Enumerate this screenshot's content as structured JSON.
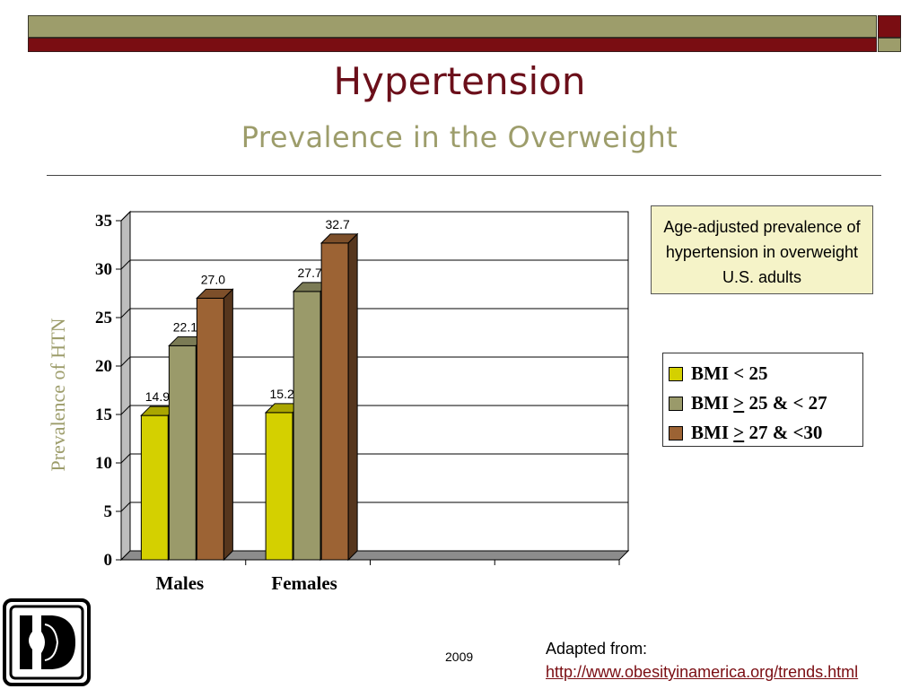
{
  "slide": {
    "title": "Hypertension",
    "subtitle": "Prevalence in the Overweight",
    "note": "Age-adjusted prevalence of hypertension in overweight U.S. adults",
    "year": "2009",
    "source_label": "Adapted from:",
    "source_link": "http://www.obesityinamerica.org/trends.html"
  },
  "colors": {
    "olive": "#9d9d6b",
    "maroon": "#7a0d12",
    "note_bg": "#f5f3c8"
  },
  "legend": [
    {
      "pre": "BMI < 25",
      "u": "",
      "post": "",
      "color": "#d4d000"
    },
    {
      "pre": "BMI ",
      "u": ">",
      "post": " 25 & < 27",
      "color": "#9a9a6a"
    },
    {
      "pre": "BMI ",
      "u": ">",
      "post": " 27 & <30",
      "color": "#9c6334"
    }
  ],
  "chart_data": {
    "type": "bar",
    "categories": [
      "Males",
      "Females"
    ],
    "series": [
      {
        "name": "BMI < 25",
        "values": [
          14.9,
          15.2
        ],
        "color": "#d4d000"
      },
      {
        "name": "BMI > 25 & < 27",
        "values": [
          22.1,
          27.7
        ],
        "color": "#9a9a6a"
      },
      {
        "name": "BMI > 27 & <30",
        "values": [
          27.0,
          32.7
        ],
        "color": "#9c6334"
      }
    ],
    "data_labels": [
      "14.9",
      "22.1",
      "27.0",
      "15.2",
      "27.7",
      "32.7"
    ],
    "ylabel": "Prevalence of HTN",
    "ylim": [
      0,
      35
    ],
    "yticks": [
      0,
      5,
      10,
      15,
      20,
      25,
      30,
      35
    ],
    "grid": true,
    "legend_position": "right"
  }
}
